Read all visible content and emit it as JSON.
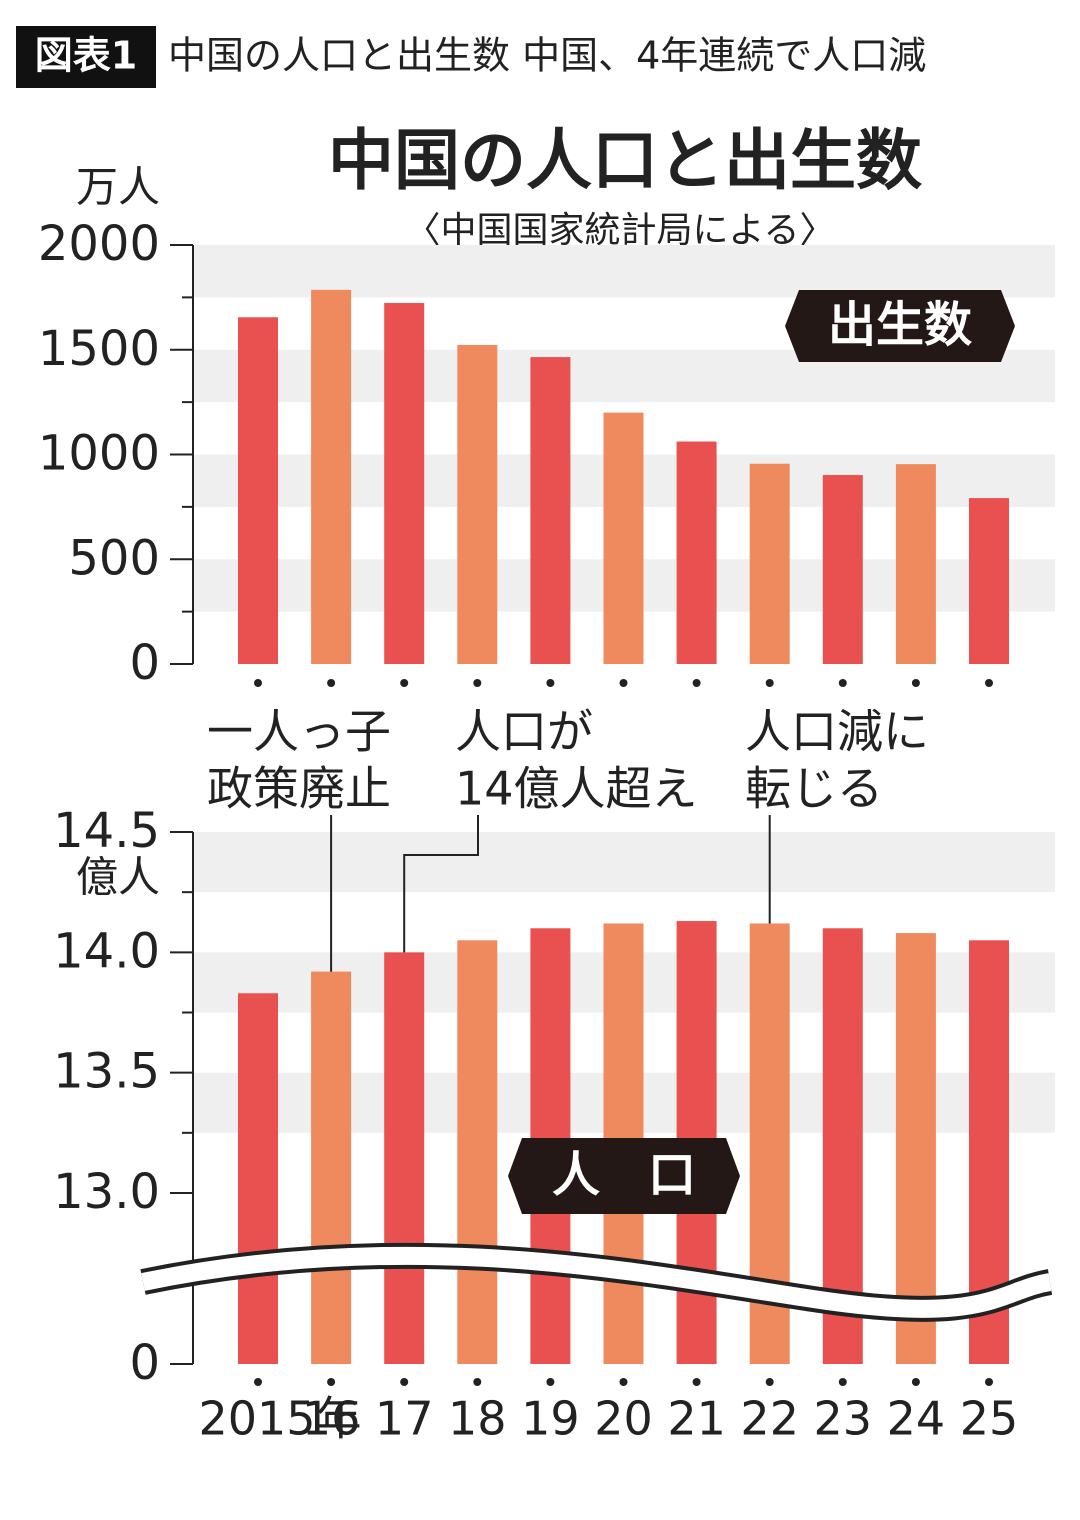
{
  "header": {
    "badge": "図表1",
    "title": "中国の人口と出生数 中国、4年連続で人口減"
  },
  "chart_data": [
    {
      "type": "bar",
      "title": "中国の人口と出生数",
      "subtitle": "〈中国国家統計局による〉",
      "y_unit": "万人",
      "badge": "出生数",
      "categories": [
        null,
        null,
        null,
        null,
        null,
        null,
        null,
        null,
        null,
        null,
        null
      ],
      "values": [
        1655,
        1786,
        1723,
        1523,
        1465,
        1200,
        1062,
        956,
        902,
        954,
        792
      ],
      "colors": [
        "#e8514f",
        "#ef8a5e",
        "#e8514f",
        "#ef8a5e",
        "#e8514f",
        "#ef8a5e",
        "#e8514f",
        "#ef8a5e",
        "#e8514f",
        "#ef8a5e",
        "#e8514f"
      ],
      "ylim": [
        0,
        2000
      ],
      "yticks": [
        0,
        500,
        1000,
        1500,
        2000
      ],
      "minor_yticks": [
        250,
        750,
        1250,
        1750
      ],
      "grid": true
    },
    {
      "type": "bar",
      "y_unit": "億人",
      "badge": "人　口",
      "categories": [
        "2015年",
        "16",
        "17",
        "18",
        "19",
        "20",
        "21",
        "22",
        "23",
        "24",
        "25"
      ],
      "values": [
        13.83,
        13.92,
        14.0,
        14.05,
        14.1,
        14.12,
        14.13,
        14.12,
        14.1,
        14.08,
        14.05
      ],
      "colors": [
        "#e8514f",
        "#ef8a5e",
        "#e8514f",
        "#ef8a5e",
        "#e8514f",
        "#ef8a5e",
        "#e8514f",
        "#ef8a5e",
        "#e8514f",
        "#ef8a5e",
        "#e8514f"
      ],
      "ylim": [
        0,
        14.5
      ],
      "yticks": [
        0,
        {
          "value": 13.0,
          "label": "13.0"
        },
        13.5,
        {
          "value": 14.0,
          "label": "14.0"
        },
        14.5
      ],
      "minor_yticks": [
        13.25,
        13.75,
        14.25
      ],
      "grid": true,
      "axis_break": true,
      "annotations": [
        [
          "一人っ子",
          "政策廃止"
        ],
        [
          "人口が",
          "14億人超え"
        ],
        [
          "人口減に",
          "転じる"
        ]
      ]
    }
  ]
}
